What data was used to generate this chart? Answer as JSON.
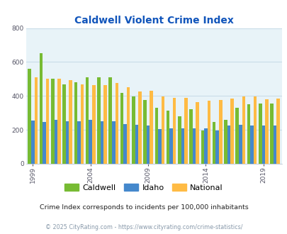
{
  "title": "Caldwell Violent Crime Index",
  "years": [
    1999,
    2000,
    2001,
    2002,
    2003,
    2004,
    2005,
    2006,
    2007,
    2008,
    2009,
    2010,
    2011,
    2012,
    2013,
    2014,
    2015,
    2016,
    2017,
    2018,
    2019,
    2020
  ],
  "caldwell": [
    560,
    650,
    500,
    470,
    480,
    510,
    510,
    510,
    420,
    395,
    375,
    330,
    315,
    280,
    320,
    195,
    245,
    260,
    330,
    350,
    355,
    355
  ],
  "idaho": [
    255,
    245,
    260,
    250,
    250,
    260,
    250,
    250,
    235,
    230,
    225,
    205,
    207,
    207,
    210,
    210,
    195,
    225,
    230,
    225,
    225,
    225
  ],
  "national": [
    510,
    500,
    500,
    495,
    470,
    465,
    465,
    475,
    450,
    425,
    430,
    395,
    390,
    390,
    365,
    370,
    375,
    385,
    395,
    395,
    380,
    385
  ],
  "caldwell_color": "#77bb33",
  "idaho_color": "#4488cc",
  "national_color": "#ffbb44",
  "bg_color": "#e8f3f8",
  "grid_color": "#c8dde8",
  "ylabel_max": 800,
  "yticks": [
    0,
    200,
    400,
    600,
    800
  ],
  "subtitle": "Crime Index corresponds to incidents per 100,000 inhabitants",
  "footer": "© 2025 CityRating.com - https://www.cityrating.com/crime-statistics/",
  "title_color": "#1155bb",
  "subtitle_color": "#222222",
  "footer_color": "#8899aa",
  "bar_width": 0.28
}
